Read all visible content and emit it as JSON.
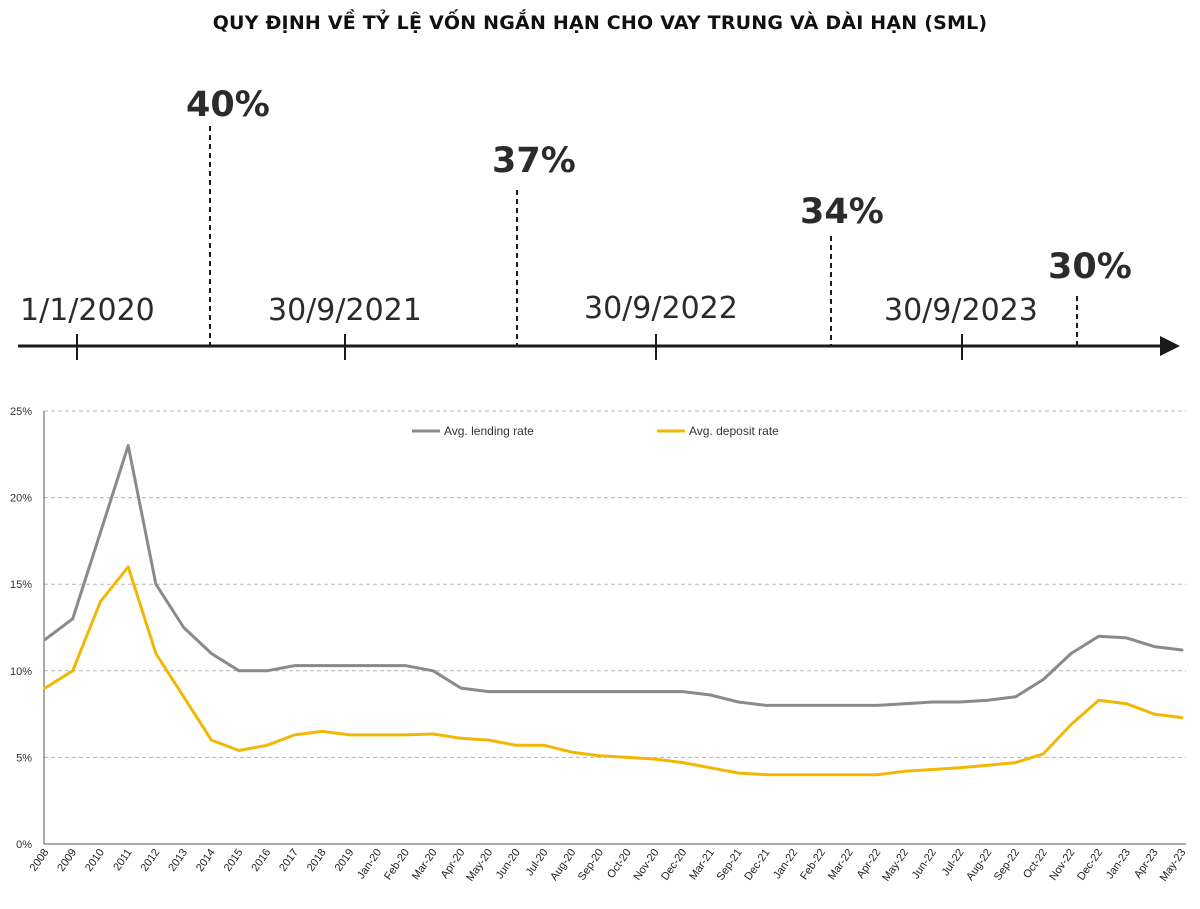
{
  "title": "QUY ĐỊNH VỀ TỶ LỆ VỐN NGẮN HẠN CHO VAY TRUNG VÀ DÀI HẠN (SML)",
  "timeline": {
    "dates": [
      "1/1/2020",
      "30/9/2021",
      "30/9/2022",
      "30/9/2023"
    ],
    "ratios": [
      "40%",
      "37%",
      "34%",
      "30%"
    ]
  },
  "chart_data": {
    "type": "line",
    "ylim": [
      0,
      25
    ],
    "yticks": [
      "0%",
      "5%",
      "10%",
      "15%",
      "20%",
      "25%"
    ],
    "grid": true,
    "legend_position": "top",
    "x": [
      "2008",
      "2009",
      "2010",
      "2011",
      "2012",
      "2013",
      "2014",
      "2015",
      "2016",
      "2017",
      "2018",
      "2019",
      "Jan-20",
      "Feb-20",
      "Mar-20",
      "Apr-20",
      "May-20",
      "Jun-20",
      "Jul-20",
      "Aug-20",
      "Sep-20",
      "Oct-20",
      "Nov-20",
      "Dec-20",
      "Mar-21",
      "Sep-21",
      "Dec-21",
      "Jan-22",
      "Feb-22",
      "Mar-22",
      "Apr-22",
      "May-22",
      "Jun-22",
      "Jul-22",
      "Aug-22",
      "Sep-22",
      "Oct-22",
      "Nov-22",
      "Dec-22",
      "Jan-23",
      "Apr-23",
      "May-23"
    ],
    "series": [
      {
        "name": "Avg. lending rate",
        "color": "#8a8a8a",
        "values": [
          11.8,
          13.0,
          18.0,
          23.0,
          15.0,
          12.5,
          11.0,
          10.0,
          10.0,
          10.3,
          10.3,
          10.3,
          10.3,
          10.3,
          10.0,
          9.0,
          8.8,
          8.8,
          8.8,
          8.8,
          8.8,
          8.8,
          8.8,
          8.8,
          8.6,
          8.2,
          8.0,
          8.0,
          8.0,
          8.0,
          8.0,
          8.1,
          8.2,
          8.2,
          8.3,
          8.5,
          9.5,
          11.0,
          12.0,
          11.9,
          11.4,
          11.2
        ]
      },
      {
        "name": "Avg. deposit rate",
        "color": "#f2b705",
        "values": [
          9.0,
          10.0,
          14.0,
          16.0,
          11.0,
          8.5,
          6.0,
          5.4,
          5.7,
          6.3,
          6.5,
          6.3,
          6.3,
          6.3,
          6.35,
          6.1,
          6.0,
          5.7,
          5.7,
          5.3,
          5.1,
          5.0,
          4.9,
          4.7,
          4.4,
          4.1,
          4.0,
          4.0,
          4.0,
          4.0,
          4.0,
          4.2,
          4.3,
          4.4,
          4.55,
          4.7,
          5.2,
          6.9,
          8.3,
          8.1,
          7.5,
          7.3
        ]
      }
    ]
  }
}
